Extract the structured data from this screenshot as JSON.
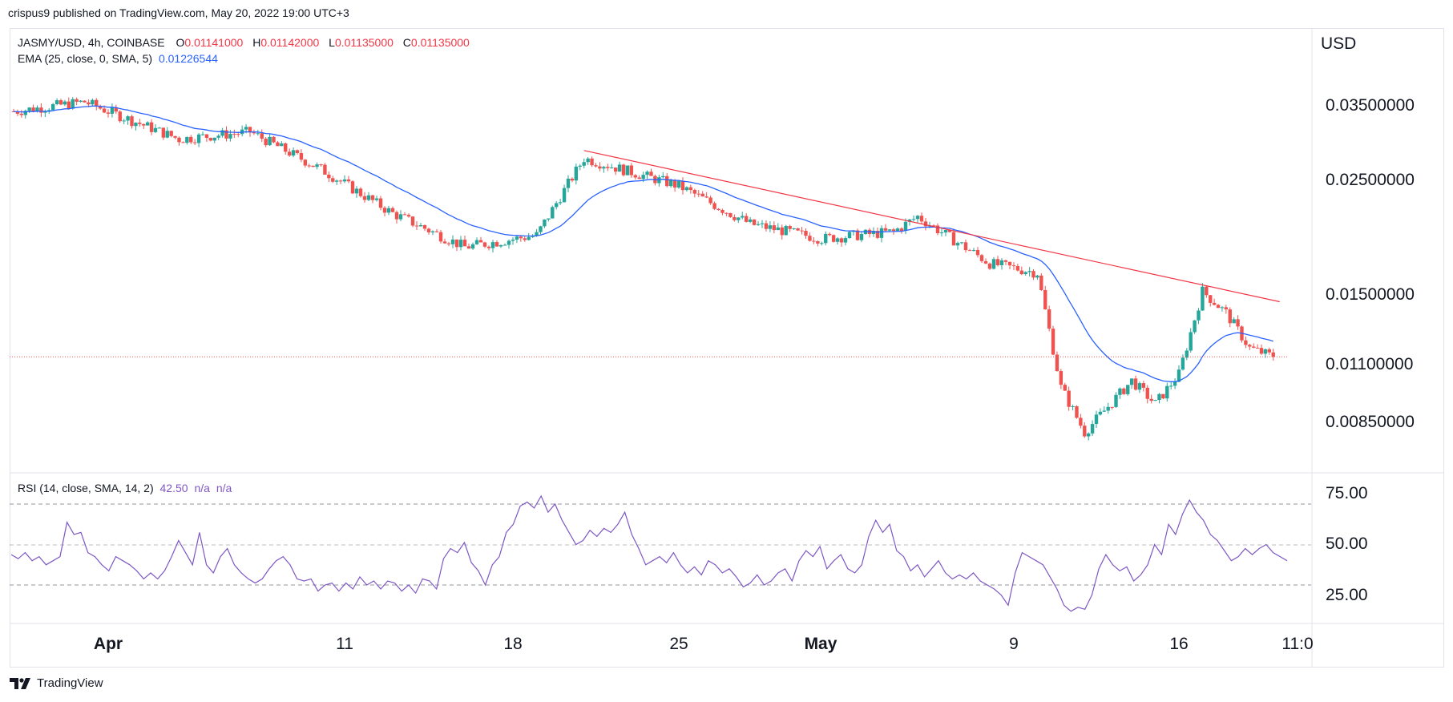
{
  "header": {
    "publisher_line": "crispus9 published on TradingView.com, May 20, 2022 19:00 UTC+3"
  },
  "legend": {
    "symbol": "JASMY/USD, 4h, COINBASE",
    "open_label": "O",
    "open": "0.01141000",
    "high_label": "H",
    "high": "0.01142000",
    "low_label": "L",
    "low": "0.01135000",
    "close_label": "C",
    "close": "0.01135000",
    "ema_label": "EMA (25, close, 0, SMA, 5)",
    "ema_value": "0.01226544",
    "rsi_label": "RSI (14, close, SMA, 14, 2)",
    "rsi_value": "42.50",
    "rsi_na1": "n/a",
    "rsi_na2": "n/a"
  },
  "footer": {
    "brand": "TradingView",
    "logo_icon": "tradingview-logo-icon"
  },
  "colors": {
    "up": "#26a69a",
    "down": "#ef5350",
    "ema": "#2962ff",
    "trend": "#f23645",
    "rsi": "#7e57c2",
    "grid": "#e0e3eb"
  },
  "chart_data": [
    {
      "type": "candlestick",
      "title": "JASMY/USD, 4h, COINBASE",
      "ylabel": "USD",
      "y_ticks": [
        "0.03500000",
        "0.02500000",
        "0.01500000",
        "0.01100000",
        "0.00850000"
      ],
      "x_ticks": [
        "Apr",
        "11",
        "18",
        "25",
        "May",
        "9",
        "16",
        "11:0"
      ],
      "last_price": 0.01135,
      "approx_path": [
        {
          "date": "Mar 28",
          "price": 0.034
        },
        {
          "date": "Mar 31",
          "price": 0.0355
        },
        {
          "date": "Apr 4",
          "price": 0.03
        },
        {
          "date": "Apr 7",
          "price": 0.031
        },
        {
          "date": "Apr 10",
          "price": 0.0262
        },
        {
          "date": "Apr 13",
          "price": 0.0215
        },
        {
          "date": "Apr 16",
          "price": 0.0185
        },
        {
          "date": "Apr 19",
          "price": 0.0195
        },
        {
          "date": "Apr 21",
          "price": 0.0275
        },
        {
          "date": "Apr 25",
          "price": 0.0243
        },
        {
          "date": "Apr 28",
          "price": 0.0205
        },
        {
          "date": "May 1",
          "price": 0.0192
        },
        {
          "date": "May 4",
          "price": 0.0198
        },
        {
          "date": "May 5",
          "price": 0.0212
        },
        {
          "date": "May 8",
          "price": 0.0172
        },
        {
          "date": "May 10",
          "price": 0.0165
        },
        {
          "date": "May 11",
          "price": 0.0099
        },
        {
          "date": "May 12",
          "price": 0.0081
        },
        {
          "date": "May 14",
          "price": 0.0102
        },
        {
          "date": "May 15",
          "price": 0.0092
        },
        {
          "date": "May 16",
          "price": 0.0105
        },
        {
          "date": "May 17",
          "price": 0.0152
        },
        {
          "date": "May 18",
          "price": 0.0138
        },
        {
          "date": "May 19",
          "price": 0.0118
        },
        {
          "date": "May 20",
          "price": 0.01135
        }
      ],
      "trendline": [
        {
          "date": "Apr 21",
          "price": 0.0285
        },
        {
          "date": "May 20",
          "price": 0.0145
        }
      ]
    },
    {
      "type": "line",
      "title": "RSI (14, close, SMA, 14, 2)",
      "y_ticks": [
        "75.00",
        "50.00",
        "25.00"
      ],
      "bands": [
        70,
        50,
        30
      ],
      "last_value": 42.5,
      "values": [
        45,
        43,
        46,
        42,
        44,
        40,
        42,
        44,
        61,
        55,
        56,
        46,
        44,
        40,
        37,
        44,
        42,
        40,
        37,
        33,
        36,
        33,
        37,
        44,
        52,
        46,
        40,
        56,
        40,
        36,
        44,
        48,
        40,
        36,
        33,
        31,
        33,
        38,
        42,
        44,
        40,
        33,
        32,
        33,
        27,
        30,
        31,
        27,
        31,
        28,
        34,
        30,
        32,
        28,
        32,
        31,
        27,
        30,
        26,
        33,
        32,
        28,
        43,
        48,
        46,
        51,
        41,
        37,
        30,
        40,
        44,
        56,
        60,
        69,
        71,
        68,
        74,
        66,
        70,
        62,
        56,
        50,
        52,
        57,
        54,
        58,
        56,
        60,
        66,
        55,
        48,
        40,
        42,
        44,
        41,
        46,
        40,
        36,
        39,
        35,
        42,
        40,
        36,
        38,
        34,
        29,
        31,
        35,
        30,
        32,
        36,
        38,
        32,
        42,
        47,
        44,
        49,
        38,
        42,
        45,
        38,
        36,
        40,
        54,
        62,
        56,
        60,
        47,
        44,
        37,
        40,
        34,
        38,
        42,
        36,
        33,
        35,
        33,
        36,
        32,
        30,
        28,
        25,
        20,
        36,
        46,
        44,
        42,
        40,
        34,
        28,
        20,
        17,
        19,
        18,
        25,
        38,
        45,
        40,
        37,
        39,
        32,
        35,
        40,
        50,
        45,
        60,
        55,
        65,
        72,
        66,
        62,
        55,
        52,
        47,
        42,
        44,
        48,
        45,
        48,
        50,
        46,
        44,
        42
      ]
    }
  ]
}
